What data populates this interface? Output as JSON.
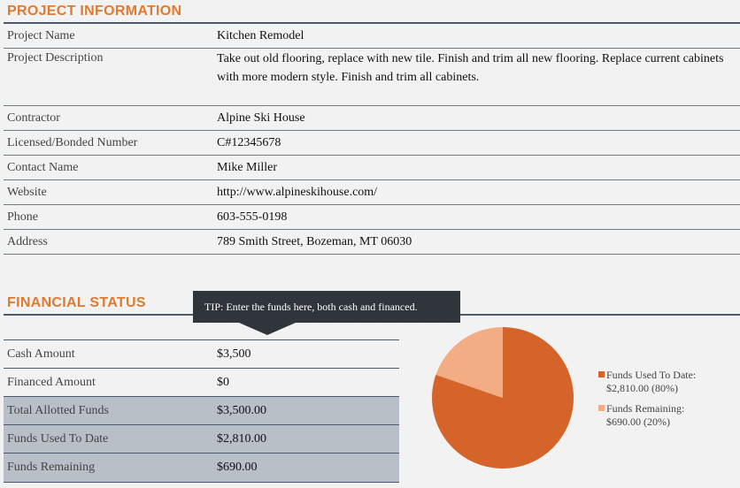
{
  "project": {
    "section_title": "PROJECT INFORMATION",
    "rows": {
      "name": {
        "label": "Project Name",
        "value": "Kitchen Remodel"
      },
      "description": {
        "label": "Project Description",
        "value": "Take out old flooring, replace with new tile.  Finish and trim all new flooring.  Replace current cabinets with more modern style.  Finish and trim all cabinets."
      },
      "contractor": {
        "label": "Contractor",
        "value": "Alpine Ski House"
      },
      "license": {
        "label": "Licensed/Bonded Number",
        "value": "C#12345678"
      },
      "contact": {
        "label": "Contact Name",
        "value": "Mike Miller"
      },
      "website": {
        "label": "Website",
        "value": "http://www.alpineskihouse.com/"
      },
      "phone": {
        "label": "Phone",
        "value": "603-555-0198"
      },
      "address": {
        "label": "Address",
        "value": "789 Smith Street, Bozeman, MT 06030"
      }
    }
  },
  "financial": {
    "section_title": "FINANCIAL STATUS",
    "tip": "TIP: Enter the funds here, both cash and financed.",
    "rows": {
      "cash": {
        "label": "Cash Amount",
        "value": "$3,500"
      },
      "financed": {
        "label": "Financed Amount",
        "value": "$0"
      },
      "total": {
        "label": "Total Allotted Funds",
        "value": "$3,500.00"
      },
      "used": {
        "label": "Funds Used To Date",
        "value": "$2,810.00"
      },
      "remaining": {
        "label": "Funds Remaining",
        "value": "$690.00"
      }
    }
  },
  "chart_data": {
    "type": "pie",
    "slices": [
      {
        "name": "Funds Used To Date",
        "value": 2810,
        "percent": 80,
        "label_line1": "Funds Used To Date:",
        "label_line2": "$2,810.00 (80%)",
        "color": "#d4642a"
      },
      {
        "name": "Funds Remaining",
        "value": 690,
        "percent": 20,
        "label_line1": "Funds Remaining:",
        "label_line2": "$690.00 (20%)",
        "color": "#f2ad84"
      }
    ],
    "legend_position": "right"
  },
  "colors": {
    "accent": "#e07a30",
    "divider": "#4b5a6c",
    "shaded_row": "#b9bfc7",
    "tooltip_bg": "#2f353b"
  }
}
